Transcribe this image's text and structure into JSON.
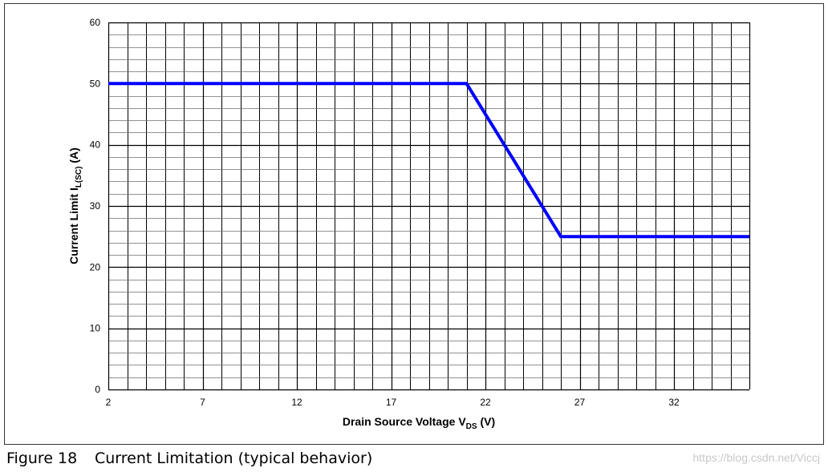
{
  "chart_data": {
    "type": "line",
    "title": "",
    "xlabel": {
      "main": "Drain Source Voltage V",
      "sub": "DS",
      "unit": " (V)"
    },
    "ylabel": {
      "main": "Current Limit I",
      "sub": "L(SC)",
      "unit": " (A)"
    },
    "xlim": [
      2,
      36
    ],
    "ylim": [
      0,
      60
    ],
    "x_ticks": [
      2,
      7,
      12,
      17,
      22,
      27,
      32
    ],
    "y_ticks": [
      0,
      10,
      20,
      30,
      40,
      50,
      60
    ],
    "x_minor_step": 1,
    "y_minor_step": 2,
    "grid": true,
    "line_color": "#0000ff",
    "series": [
      {
        "x": [
          2,
          21,
          26,
          36
        ],
        "y": [
          50,
          50,
          25,
          25
        ]
      }
    ]
  },
  "caption": {
    "figure_number": "Figure 18",
    "text": "Current Limitation (typical behavior)"
  },
  "watermark": "https://blog.csdn.net/Viccj"
}
